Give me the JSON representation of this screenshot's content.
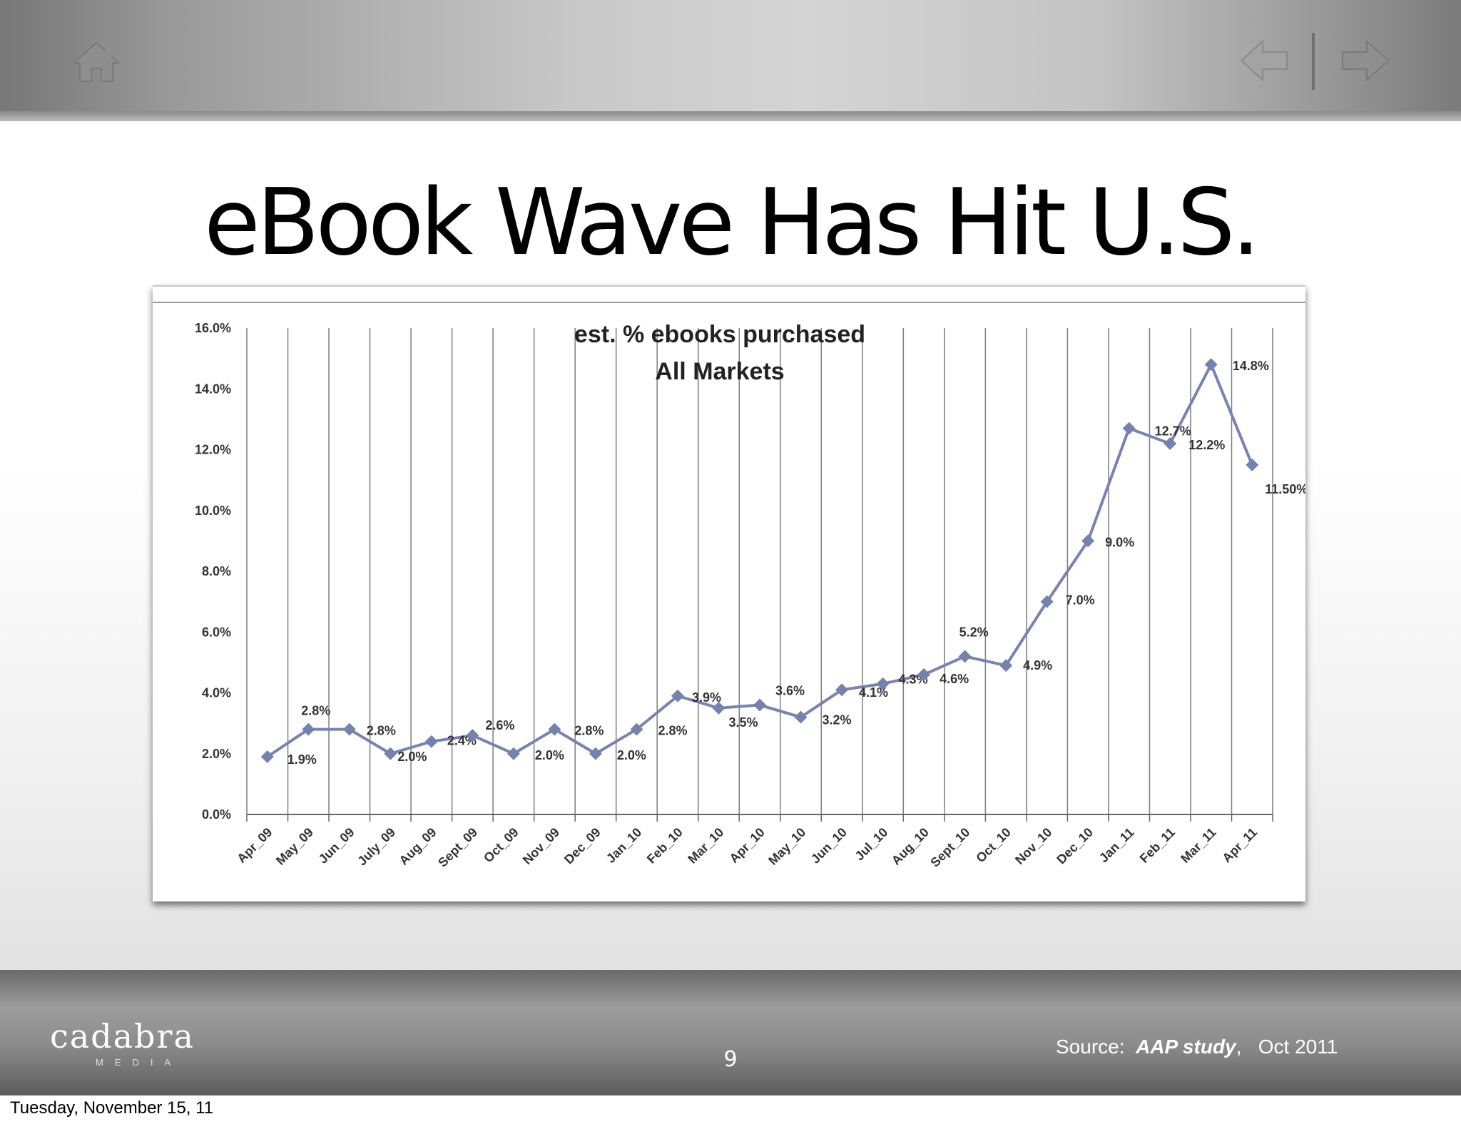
{
  "slide": {
    "title": "eBook Wave Has Hit U.S.",
    "page_number": "9",
    "source_prefix": "Source:",
    "source_study": "AAP study",
    "source_sep": ",",
    "source_date": "Oct 2011",
    "footer_date": "Tuesday, November 15, 11",
    "logo_text": "cadabra",
    "logo_sub": "MEDIA"
  },
  "icons": {
    "home": "home-icon",
    "back": "arrow-left-icon",
    "forward": "arrow-right-icon"
  },
  "chart_data": {
    "type": "line",
    "title_line1": "est. % ebooks purchased",
    "title_line2": "All Markets",
    "xlabel": "",
    "ylabel": "",
    "ylim": [
      0,
      16
    ],
    "y_ticks": [
      "0.0%",
      "2.0%",
      "4.0%",
      "6.0%",
      "8.0%",
      "10.0%",
      "12.0%",
      "14.0%",
      "16.0%"
    ],
    "grid": "vertical",
    "line_color": "#7a83b0",
    "marker_color": "#7383ad",
    "categories": [
      "Apr_09",
      "May_09",
      "Jun_09",
      "July_09",
      "Aug_09",
      "Sept_09",
      "Oct_09",
      "Nov_09",
      "Dec_09",
      "Jan_10",
      "Feb_10",
      "Mar_10",
      "Apr_10",
      "May_10",
      "Jun_10",
      "Jul_10",
      "Aug_10",
      "Sept_10",
      "Oct_10",
      "Nov_10",
      "Dec_10",
      "Jan_11",
      "Feb_11",
      "Mar_11",
      "Apr_11"
    ],
    "series": [
      {
        "values": [
          1.9,
          2.8,
          2.8,
          2.0,
          2.4,
          2.6,
          2.0,
          2.8,
          2.0,
          2.8,
          3.9,
          3.5,
          3.6,
          3.2,
          4.1,
          4.3,
          4.6,
          5.2,
          4.9,
          7.0,
          9.0,
          12.7,
          12.2,
          14.8,
          11.5
        ],
        "data_labels": [
          "1.9%",
          "2.8%",
          "2.8%",
          "2.0%",
          "2.4%",
          "2.6%",
          "2.0%",
          "2.8%",
          "2.0%",
          "2.8%",
          "3.9%",
          "3.5%",
          "3.6%",
          "3.2%",
          "4.1%",
          "4.3%",
          "4.6%",
          "5.2%",
          "4.9%",
          "7.0%",
          "9.0%",
          "12.7%",
          "12.2%",
          "14.8%",
          "11.50%"
        ]
      }
    ]
  }
}
